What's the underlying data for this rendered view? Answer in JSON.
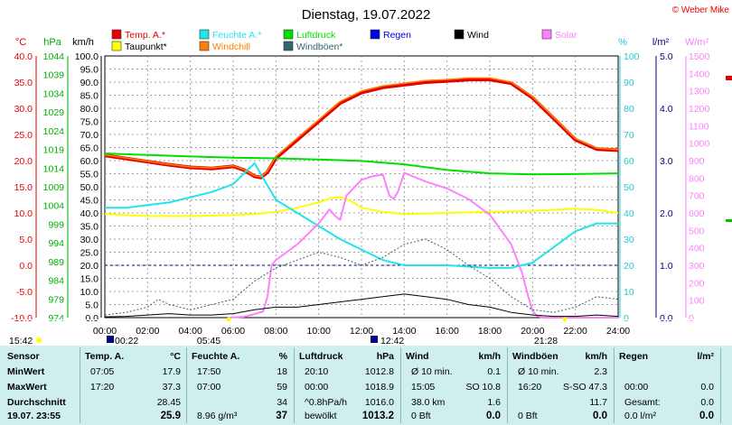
{
  "title": "Dienstag, 19.07.2022",
  "credit": "© Weber Mike",
  "colors": {
    "temp": "#e60000",
    "dew": "#ffff00",
    "humidity": "#22e4ec",
    "windchill": "#ff8000",
    "pressure": "#00e000",
    "gust": "#336666",
    "rain": "#0000e0",
    "wind": "#000000",
    "solar": "#ff80ff",
    "blue_axis": "#000080"
  },
  "axis_titles": {
    "temp": "°C",
    "pressure": "hPa",
    "speed": "km/h",
    "humidity": "%",
    "rain": "l/m²",
    "solar": "W/m²"
  },
  "legend": [
    {
      "label": "Temp. A.*",
      "color": "#e60000"
    },
    {
      "label": "Feuchte A.*",
      "color": "#22e4ec"
    },
    {
      "label": "Luftdruck",
      "color": "#00e000"
    },
    {
      "label": "Regen",
      "color": "#0000e0"
    },
    {
      "label": "Wind",
      "color": "#000000"
    },
    {
      "label": "Solar",
      "color": "#ff80ff"
    },
    {
      "label": "Taupunkt*",
      "color": "#ffff00"
    },
    {
      "label": "Windchill",
      "color": "#ff8000"
    },
    {
      "label": "Windböen*",
      "color": "#336666"
    }
  ],
  "sun": {
    "sunrise": "05:45",
    "sunset": "21:28",
    "moonrise": "00:22",
    "moonset": "12:42",
    "corner_time": "15:42"
  },
  "chart_data": {
    "type": "line",
    "x_ticks": [
      "00:00",
      "02:00",
      "04:00",
      "06:00",
      "08:00",
      "10:00",
      "12:00",
      "14:00",
      "16:00",
      "18:00",
      "20:00",
      "22:00",
      "24:00"
    ],
    "axes": {
      "temp": {
        "ticks": [
          "40.0",
          "35.0",
          "30.0",
          "25.0",
          "20.0",
          "15.0",
          "10.0",
          "5.0",
          "0.0",
          "-5.0",
          "-10.0"
        ],
        "range": [
          -10,
          40
        ]
      },
      "pressure": {
        "ticks": [
          "1044",
          "1039",
          "1034",
          "1029",
          "1024",
          "1019",
          "1014",
          "1009",
          "1004",
          "999",
          "994",
          "989",
          "984",
          "979",
          "974"
        ],
        "range": [
          974,
          1044
        ]
      },
      "speed": {
        "ticks": [
          "100.0",
          "95.0",
          "90.0",
          "85.0",
          "80.0",
          "75.0",
          "70.0",
          "65.0",
          "60.0",
          "55.0",
          "50.0",
          "45.0",
          "40.0",
          "35.0",
          "30.0",
          "25.0",
          "20.0",
          "15.0",
          "10.0",
          "5.0",
          "0.0"
        ],
        "range": [
          0,
          100
        ]
      },
      "humidity": {
        "ticks": [
          "100",
          "90",
          "80",
          "70",
          "60",
          "50",
          "40",
          "30",
          "20",
          "10",
          "0"
        ],
        "range": [
          0,
          100
        ]
      },
      "rain": {
        "ticks": [
          "5.0",
          "4.0",
          "3.0",
          "2.0",
          "1.0",
          "0.0"
        ],
        "range": [
          0,
          5
        ]
      },
      "solar": {
        "ticks": [
          "1500",
          "1400",
          "1300",
          "1200",
          "1100",
          "1000",
          "900",
          "800",
          "700",
          "600",
          "500",
          "400",
          "300",
          "200",
          "100",
          "0"
        ],
        "range": [
          0,
          1500
        ]
      }
    },
    "series": [
      {
        "name": "Temp. A.*",
        "axis": "temp",
        "color": "#e60000",
        "width": 4,
        "x": [
          0,
          1,
          2,
          3,
          4,
          5,
          6,
          6.5,
          7,
          7.3,
          7.6,
          8,
          9,
          10,
          11,
          12,
          13,
          14,
          15,
          16,
          17,
          18,
          19,
          20,
          21,
          22,
          23,
          24
        ],
        "y": [
          21.0,
          20.4,
          19.8,
          19.2,
          18.7,
          18.5,
          18.9,
          18.2,
          17.0,
          16.8,
          17.8,
          20.5,
          24.0,
          27.5,
          31.0,
          33.0,
          34.0,
          34.5,
          35.0,
          35.2,
          35.5,
          35.5,
          34.8,
          32.0,
          28.0,
          24.0,
          22.2,
          22.0
        ]
      },
      {
        "name": "Windchill",
        "axis": "temp",
        "color": "#ff8000",
        "width": 1.5,
        "x": [
          0,
          1,
          2,
          3,
          4,
          5,
          6,
          6.5,
          7,
          7.3,
          7.6,
          8,
          9,
          10,
          11,
          12,
          13,
          14,
          15,
          16,
          17,
          18,
          19,
          20,
          21,
          22,
          23,
          24
        ],
        "y": [
          21.1,
          20.5,
          19.9,
          19.3,
          18.8,
          18.6,
          19.0,
          18.3,
          17.1,
          16.9,
          18.0,
          20.8,
          24.3,
          27.8,
          31.3,
          33.3,
          34.3,
          34.8,
          35.3,
          35.5,
          35.8,
          35.8,
          35.0,
          32.2,
          28.2,
          24.2,
          22.4,
          22.1
        ]
      },
      {
        "name": "Luftdruck",
        "axis": "pressure",
        "color": "#00e000",
        "width": 2,
        "x": [
          0,
          2,
          4,
          6,
          8,
          10,
          12,
          14,
          16,
          18,
          20,
          22,
          24
        ],
        "y": [
          1017.9,
          1017.5,
          1017.1,
          1016.8,
          1016.6,
          1016.3,
          1015.9,
          1015.0,
          1013.5,
          1012.6,
          1012.3,
          1012.4,
          1012.6
        ]
      },
      {
        "name": "Taupunkt*",
        "axis": "temp",
        "color": "#ffff00",
        "width": 2,
        "x": [
          0,
          2,
          4,
          6,
          7,
          8,
          9,
          10,
          10.5,
          11,
          11.5,
          12,
          13,
          14,
          16,
          18,
          20,
          21,
          22,
          23,
          24
        ],
        "y": [
          9.8,
          9.4,
          9.4,
          9.6,
          9.8,
          10.2,
          11.0,
          12.0,
          12.8,
          13.0,
          12.3,
          11.0,
          10.2,
          9.8,
          10.0,
          10.2,
          10.4,
          10.6,
          10.8,
          10.6,
          10.0
        ]
      },
      {
        "name": "Feuchte A.*",
        "axis": "humidity",
        "color": "#22e4ec",
        "width": 2,
        "x": [
          0,
          1,
          2,
          3,
          4,
          5,
          6,
          6.5,
          7,
          7.5,
          8,
          9,
          10,
          11,
          12,
          13,
          14,
          16,
          18,
          19,
          20,
          21,
          22,
          23,
          24
        ],
        "y": [
          42,
          42,
          43,
          44,
          46,
          48,
          51,
          55,
          59,
          52,
          45,
          40,
          35,
          30,
          26,
          22,
          20,
          20,
          19,
          19,
          21,
          27,
          33,
          36,
          36
        ]
      },
      {
        "name": "Solar",
        "axis": "solar",
        "color": "#ff80ff",
        "width": 2,
        "x": [
          5.8,
          6.5,
          7,
          7.4,
          7.6,
          7.8,
          8,
          9,
          10,
          10.5,
          10.8,
          11,
          11.3,
          12,
          12.5,
          13,
          13.3,
          13.5,
          13.7,
          14,
          15,
          16,
          17,
          18,
          19,
          19.5,
          19.8,
          20,
          20.2,
          20.5,
          24
        ],
        "y": [
          0,
          5,
          20,
          35,
          120,
          300,
          330,
          420,
          540,
          620,
          580,
          560,
          700,
          790,
          810,
          820,
          700,
          680,
          720,
          830,
          780,
          740,
          680,
          590,
          420,
          260,
          120,
          40,
          10,
          0,
          0
        ]
      },
      {
        "name": "Windböen*",
        "axis": "speed",
        "color": "#336666",
        "width": 1,
        "dash": "2,2",
        "x": [
          0,
          1,
          2,
          2.5,
          3,
          4,
          5,
          6,
          7,
          8,
          9,
          10,
          11,
          12,
          13,
          14,
          15,
          16,
          17,
          18,
          19,
          20,
          21,
          22,
          23,
          24
        ],
        "y": [
          1,
          2,
          4,
          7,
          5,
          3,
          5,
          7,
          14,
          19,
          22,
          25,
          23,
          20,
          23,
          28,
          30,
          26,
          20,
          15,
          8,
          3,
          2,
          4,
          8,
          7
        ]
      },
      {
        "name": "Wind",
        "axis": "speed",
        "color": "#000000",
        "width": 1,
        "x": [
          0,
          1,
          2,
          3,
          4,
          5,
          6,
          7,
          8,
          9,
          10,
          11,
          12,
          13,
          14,
          15,
          16,
          17,
          18,
          19,
          20,
          21,
          22,
          23,
          24
        ],
        "y": [
          0.3,
          0.5,
          1,
          1.5,
          1,
          1,
          1.5,
          3,
          4,
          4,
          5,
          6,
          7,
          8,
          9,
          8,
          7,
          5,
          4,
          2,
          1,
          0.5,
          0.5,
          1,
          0.5
        ]
      }
    ]
  },
  "table": {
    "sections": [
      {
        "head": "Sensor",
        "rows": [
          "MinWert",
          "MaxWert",
          "Durchschnitt"
        ],
        "foot": "19.07. 23:55"
      },
      {
        "head": "Temp. A.",
        "unit": "°C",
        "rows": [
          [
            "07:05",
            "17.9"
          ],
          [
            "17:20",
            "37.3"
          ],
          [
            "",
            "28.45"
          ]
        ],
        "foot": [
          "",
          "25.9"
        ]
      },
      {
        "head": "Feuchte A.",
        "unit": "%",
        "rows": [
          [
            "17:50",
            "18"
          ],
          [
            "07:00",
            "59"
          ],
          [
            "",
            "34"
          ]
        ],
        "foot": [
          "8.96 g/m³",
          "37"
        ]
      },
      {
        "head": "Luftdruck",
        "unit": "hPa",
        "rows": [
          [
            "20:10",
            "1012.8"
          ],
          [
            "00:00",
            "1018.9"
          ],
          [
            "^0.8hPa/h",
            "1016.0"
          ]
        ],
        "foot": [
          "bewölkt",
          "1013.2"
        ]
      },
      {
        "head": "Wind",
        "unit": "km/h",
        "rows": [
          [
            "Ø 10 min.",
            "0.1"
          ],
          [
            "15:05",
            "SO 10.8"
          ],
          [
            "38.0 km",
            "1.6"
          ]
        ],
        "foot": [
          "0 Bft",
          "0.0"
        ]
      },
      {
        "head": "Windböen",
        "unit": "km/h",
        "rows": [
          [
            "Ø 10 min.",
            "2.3"
          ],
          [
            "16:20",
            "S-SO 47.3"
          ],
          [
            "",
            "11.7"
          ]
        ],
        "foot": [
          "0 Bft",
          "0.0"
        ]
      },
      {
        "head": "Regen",
        "unit": "l/m²",
        "rows": [
          [
            "",
            ""
          ],
          [
            "00:00",
            "0.0"
          ],
          [
            "Gesamt:",
            "0.0"
          ]
        ],
        "foot": [
          "0.0 l/m²",
          "0.0"
        ]
      }
    ]
  }
}
